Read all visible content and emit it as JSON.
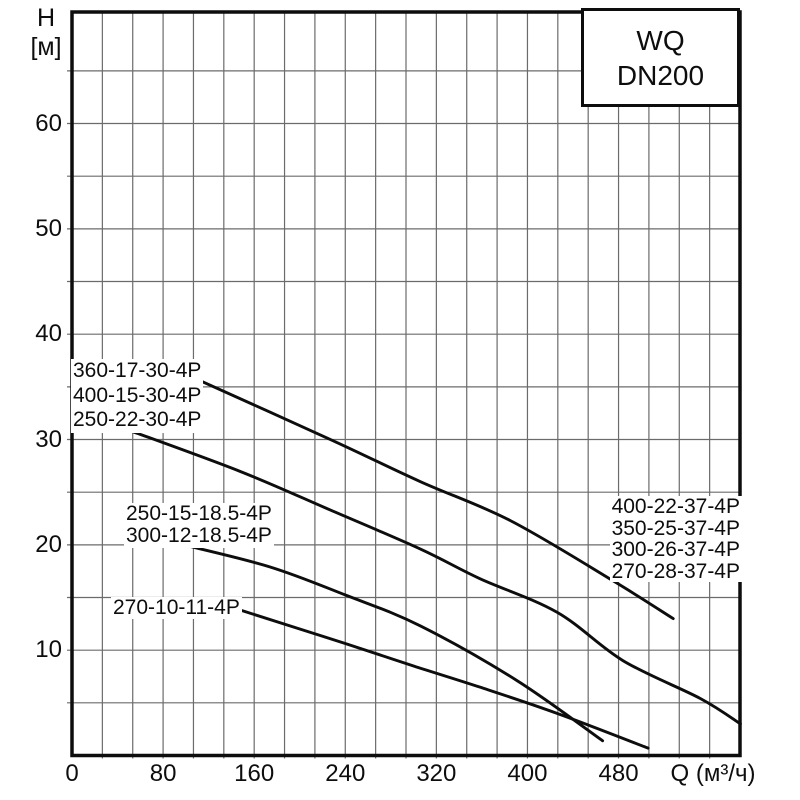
{
  "title_box": {
    "line1": "WQ",
    "line2": "DN200"
  },
  "y_axis": {
    "title_line1": "H",
    "title_line2": "[м]",
    "ticks": [
      60,
      50,
      40,
      30,
      20,
      10
    ]
  },
  "x_axis": {
    "ticks": [
      0,
      80,
      160,
      240,
      320,
      400,
      480
    ],
    "unit_label": "Q (м³/ч)"
  },
  "curve_labels": {
    "group_30kw": [
      "360-17-30-4P",
      "400-15-30-4P",
      "250-22-30-4P"
    ],
    "group_18_5kw": [
      "250-15-18.5-4P",
      "300-12-18.5-4P"
    ],
    "group_11kw": [
      "270-10-11-4P"
    ],
    "group_37kw": [
      "400-22-37-4P",
      "350-25-37-4P",
      "300-26-37-4P",
      "270-28-37-4P"
    ]
  },
  "colors": {
    "background": "#ffffff",
    "frame": "#0d0d0d",
    "grid": "#6b6b6b",
    "curve": "#0d0d0d",
    "text": "#0d0d0d"
  },
  "chart_data": {
    "type": "line",
    "title": "WQ DN200",
    "xlabel": "Q (м³/ч)",
    "ylabel": "H [м]",
    "xlim": [
      0,
      586.7
    ],
    "ylim": [
      0,
      70.5
    ],
    "x_major_tick_step": 80,
    "x_minor_grid_step": 26.67,
    "y_major_tick_step": 10,
    "y_minor_grid_step": 5,
    "grid": true,
    "legend_position": "none",
    "series": [
      {
        "name": "37 kW family (400-22-37-4P, 350-25-37-4P, 300-26-37-4P, 270-28-37-4P)",
        "points": [
          [
            104,
            36
          ],
          [
            227,
            30
          ],
          [
            306,
            26
          ],
          [
            385,
            22.3
          ],
          [
            475,
            16.6
          ],
          [
            528,
            13
          ]
        ]
      },
      {
        "name": "30 kW family (360-17-30-4P, 400-15-30-4P, 250-22-30-4P)",
        "points": [
          [
            47,
            31
          ],
          [
            147,
            27
          ],
          [
            227,
            23.3
          ],
          [
            306,
            19.6
          ],
          [
            358,
            16.8
          ],
          [
            426,
            13.6
          ],
          [
            484,
            9
          ],
          [
            552,
            5.4
          ],
          [
            587,
            3
          ]
        ]
      },
      {
        "name": "18.5 kW family (250-15-18.5-4P, 300-12-18.5-4P)",
        "points": [
          [
            98,
            20
          ],
          [
            174,
            17.9
          ],
          [
            241,
            15.2
          ],
          [
            306,
            12.3
          ],
          [
            391,
            7.1
          ],
          [
            466,
            1.4
          ]
        ]
      },
      {
        "name": "11 kW family (270-10-11-4P)",
        "points": [
          [
            148,
            13.8
          ],
          [
            241,
            10.6
          ],
          [
            300,
            8.5
          ],
          [
            358,
            6.5
          ],
          [
            426,
            4
          ],
          [
            506,
            0.7
          ]
        ]
      }
    ]
  }
}
